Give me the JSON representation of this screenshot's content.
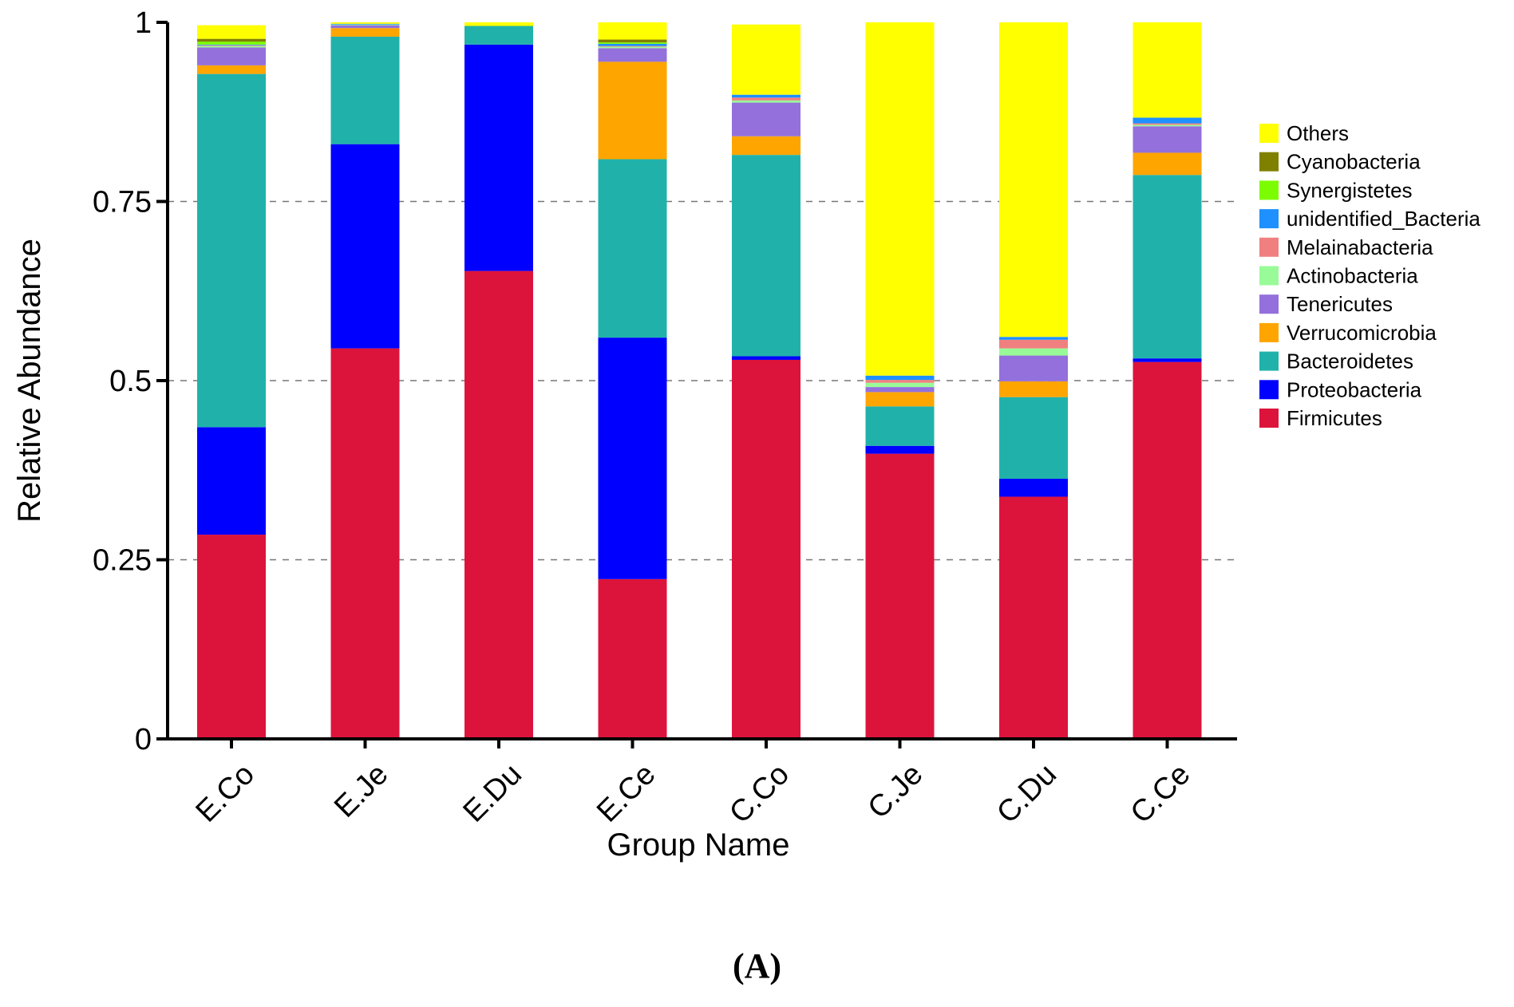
{
  "chart_data": {
    "type": "bar",
    "stacked": true,
    "panel_label": "(A)",
    "xlabel": "Group Name",
    "ylabel": "Relative Abundance",
    "ylim": [
      0,
      1
    ],
    "yticks": [
      0,
      0.25,
      0.5,
      0.75,
      1
    ],
    "ytick_labels": [
      "0",
      "0.25",
      "0.5",
      "0.75",
      "1"
    ],
    "grid": "dashed horizontal at 0.25, 0.5, 0.75",
    "legend_position": "right",
    "categories": [
      "E.Co",
      "E.Je",
      "E.Du",
      "E.Ce",
      "C.Co",
      "C.Je",
      "C.Du",
      "C.Ce"
    ],
    "series": [
      {
        "name": "Firmicutes",
        "color": "#DC143C",
        "values": [
          0.285,
          0.545,
          0.653,
          0.223,
          0.529,
          0.398,
          0.338,
          0.526
        ]
      },
      {
        "name": "Proteobacteria",
        "color": "#0000FF",
        "values": [
          0.15,
          0.285,
          0.316,
          0.337,
          0.005,
          0.011,
          0.025,
          0.005
        ]
      },
      {
        "name": "Bacteroidetes",
        "color": "#20B2AA",
        "values": [
          0.493,
          0.15,
          0.026,
          0.249,
          0.281,
          0.055,
          0.114,
          0.256
        ]
      },
      {
        "name": "Verrucomicrobia",
        "color": "#FFA500",
        "values": [
          0.012,
          0.012,
          0.0,
          0.136,
          0.026,
          0.02,
          0.022,
          0.031
        ]
      },
      {
        "name": "Tenericutes",
        "color": "#9370DB",
        "values": [
          0.025,
          0.004,
          0.0,
          0.019,
          0.047,
          0.007,
          0.036,
          0.037
        ]
      },
      {
        "name": "Actinobacteria",
        "color": "#98FB98",
        "values": [
          0.002,
          0.001,
          0.0,
          0.002,
          0.003,
          0.006,
          0.01,
          0.002
        ]
      },
      {
        "name": "Melainabacteria",
        "color": "#F08080",
        "values": [
          0.001,
          0.0,
          0.0,
          0.001,
          0.004,
          0.004,
          0.012,
          0.002
        ]
      },
      {
        "name": "unidentified_Bacteria",
        "color": "#1E90FF",
        "values": [
          0.001,
          0.001,
          0.0,
          0.003,
          0.004,
          0.006,
          0.004,
          0.008
        ]
      },
      {
        "name": "Synergistetes",
        "color": "#7CFC00",
        "values": [
          0.004,
          0.0,
          0.0,
          0.002,
          0.0,
          0.0,
          0.0,
          0.0
        ]
      },
      {
        "name": "Cyanobacteria",
        "color": "#808000",
        "values": [
          0.004,
          0.0,
          0.0,
          0.004,
          0.0,
          0.0,
          0.0,
          0.0
        ]
      },
      {
        "name": "Others",
        "color": "#FFFF00",
        "values": [
          0.019,
          0.002,
          0.005,
          0.024,
          0.098,
          0.493,
          0.439,
          0.133
        ]
      }
    ],
    "legend_order": [
      "Others",
      "Cyanobacteria",
      "Synergistetes",
      "unidentified_Bacteria",
      "Melainabacteria",
      "Actinobacteria",
      "Tenericutes",
      "Verrucomicrobia",
      "Bacteroidetes",
      "Proteobacteria",
      "Firmicutes"
    ]
  }
}
